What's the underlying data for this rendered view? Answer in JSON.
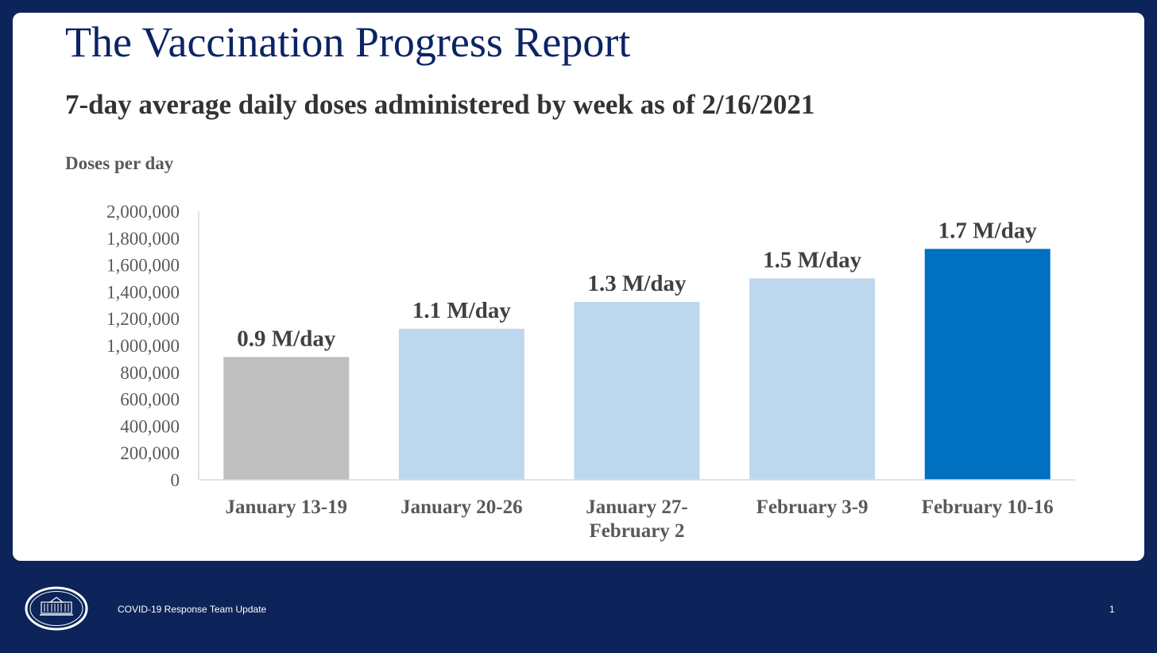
{
  "page": {
    "title": "The Vaccination Progress Report",
    "subtitle": "7-day average daily doses administered by week as of 2/16/2021",
    "footer_text": "COVID-19 Response Team Update",
    "page_number": "1"
  },
  "colors": {
    "background": "#0c2459",
    "title": "#0b2464",
    "bar_past": "#bfbfbf",
    "bar_recent": "#bdd7ee",
    "bar_current": "#0070c0"
  },
  "chart_data": {
    "type": "bar",
    "ylabel": "Doses per day",
    "xlabel": "",
    "ylim": [
      0,
      2000000
    ],
    "yticks": [
      {
        "value": 0,
        "label": "0"
      },
      {
        "value": 200000,
        "label": "200,000"
      },
      {
        "value": 400000,
        "label": "400,000"
      },
      {
        "value": 600000,
        "label": "600,000"
      },
      {
        "value": 800000,
        "label": "800,000"
      },
      {
        "value": 1000000,
        "label": "1,000,000"
      },
      {
        "value": 1200000,
        "label": "1,200,000"
      },
      {
        "value": 1400000,
        "label": "1,400,000"
      },
      {
        "value": 1600000,
        "label": "1,600,000"
      },
      {
        "value": 1800000,
        "label": "1,800,000"
      },
      {
        "value": 2000000,
        "label": "2,000,000"
      }
    ],
    "grid": false,
    "legend": "none",
    "categories": [
      [
        "January 13-19"
      ],
      [
        "January 20-26"
      ],
      [
        "January 27-",
        "February 2"
      ],
      [
        "February 3-9"
      ],
      [
        "February 10-16"
      ]
    ],
    "values": [
      915000,
      1125000,
      1325000,
      1500000,
      1720000
    ],
    "data_labels": [
      "0.9 M/day",
      "1.1 M/day",
      "1.3 M/day",
      "1.5 M/day",
      "1.7 M/day"
    ],
    "bar_colors": [
      "#bfbfbf",
      "#bdd7ee",
      "#bdd7ee",
      "#bdd7ee",
      "#0070c0"
    ]
  }
}
